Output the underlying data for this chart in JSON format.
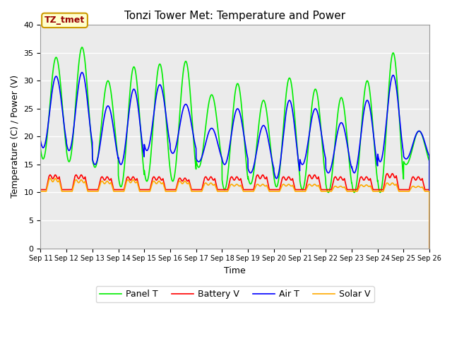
{
  "title": "Tonzi Tower Met: Temperature and Power",
  "xlabel": "Time",
  "ylabel": "Temperature (C) / Power (V)",
  "xlim_days": [
    11,
    26
  ],
  "ylim": [
    0,
    40
  ],
  "yticks": [
    0,
    5,
    10,
    15,
    20,
    25,
    30,
    35,
    40
  ],
  "xtick_labels": [
    "Sep 11",
    "Sep 12",
    "Sep 13",
    "Sep 14",
    "Sep 15",
    "Sep 16",
    "Sep 17",
    "Sep 18",
    "Sep 19",
    "Sep 20",
    "Sep 21",
    "Sep 22",
    "Sep 23",
    "Sep 24",
    "Sep 25",
    "Sep 26"
  ],
  "bg_color": "#ebebeb",
  "fig_color": "#ffffff",
  "grid_color": "#ffffff",
  "panel_t_color": "#00ee00",
  "battery_v_color": "#ff0000",
  "air_t_color": "#0000ff",
  "solar_v_color": "#ffaa00",
  "label_box_color": "#ffffcc",
  "label_box_edge": "#cc9900",
  "label_text": "TZ_tmet",
  "legend_labels": [
    "Panel T",
    "Battery V",
    "Air T",
    "Solar V"
  ],
  "n_days": 15,
  "panel_t_peaks": [
    34.2,
    36.0,
    30.0,
    32.5,
    33.0,
    33.5,
    27.5,
    29.5,
    26.5,
    30.5,
    28.5,
    27.0,
    30.0,
    35.0,
    21.0
  ],
  "panel_t_troughs": [
    16.0,
    15.5,
    14.5,
    11.0,
    12.0,
    12.0,
    14.5,
    10.5,
    11.5,
    11.0,
    10.5,
    10.0,
    10.0,
    10.0,
    15.0
  ],
  "air_t_peaks": [
    30.8,
    31.5,
    25.5,
    28.5,
    29.3,
    25.8,
    21.5,
    25.0,
    22.0,
    26.5,
    25.0,
    22.5,
    26.5,
    31.0,
    21.0
  ],
  "air_t_troughs": [
    18.0,
    17.5,
    15.0,
    15.0,
    17.5,
    17.0,
    15.5,
    15.0,
    13.5,
    12.5,
    15.0,
    13.5,
    13.5,
    15.5,
    16.0
  ],
  "battery_v_peaks": [
    12.8,
    12.8,
    12.5,
    12.5,
    12.5,
    12.3,
    12.5,
    12.5,
    12.8,
    12.5,
    12.8,
    12.5,
    12.5,
    13.0,
    12.5
  ],
  "battery_v_base": [
    10.5,
    10.5,
    10.5,
    10.5,
    10.5,
    10.5,
    10.5,
    10.5,
    10.5,
    10.5,
    10.5,
    10.5,
    10.5,
    10.5,
    10.5
  ],
  "solar_v_peaks": [
    12.2,
    12.0,
    11.8,
    12.0,
    11.8,
    11.8,
    11.5,
    11.3,
    11.3,
    11.3,
    11.3,
    11.0,
    11.2,
    11.5,
    11.0
  ],
  "solar_v_base": [
    10.2,
    10.2,
    10.2,
    10.2,
    10.2,
    10.2,
    10.2,
    10.2,
    10.2,
    10.2,
    10.2,
    10.2,
    10.2,
    10.2,
    10.2
  ]
}
